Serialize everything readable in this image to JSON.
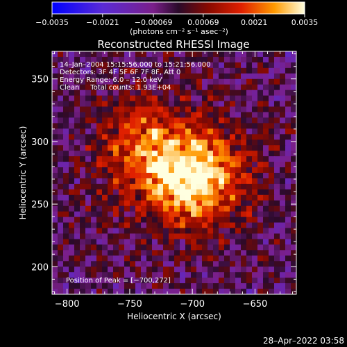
{
  "chart_data": {
    "type": "heatmap",
    "title": "Reconstructed RHESSI Image",
    "xlabel": "Heliocentric X (arcsec)",
    "ylabel": "Heliocentric Y (arcsec)",
    "xlim": [
      -812,
      -617
    ],
    "ylim": [
      178,
      372
    ],
    "x_ticks": [
      {
        "value": -800,
        "label": "−800"
      },
      {
        "value": -750,
        "label": "−750"
      },
      {
        "value": -700,
        "label": "−700"
      },
      {
        "value": -650,
        "label": "−650"
      }
    ],
    "y_ticks": [
      {
        "value": 200,
        "label": "200"
      },
      {
        "value": 250,
        "label": "250"
      },
      {
        "value": 300,
        "label": "300"
      },
      {
        "value": 350,
        "label": "350"
      }
    ],
    "colorbar": {
      "range": [
        -0.0035,
        0.0035
      ],
      "ticks": [
        {
          "value": -0.0035,
          "label": "−0.0035"
        },
        {
          "value": -0.0021,
          "label": "−0.0021"
        },
        {
          "value": -0.00069,
          "label": "−0.00069"
        },
        {
          "value": 0.00069,
          "label": "0.00069"
        },
        {
          "value": 0.0021,
          "label": "0.0021"
        },
        {
          "value": 0.0035,
          "label": "0.0035"
        }
      ],
      "label": "(photons cm⁻² s⁻¹ asec⁻²)"
    },
    "annotations": [
      "14–Jan–2004 15:15:56.000 to 15:21:56.000",
      "Detectors: 3F 4F 5F 6F 7F 8F, Att 0",
      "Energy Range: 6.0 – 12.0 keV",
      "Clean     Total counts: 1.93E+04"
    ],
    "peak_label": "Position of Peak = [−700,272]",
    "peak": [
      -700,
      272
    ],
    "grid": false
  },
  "footer": {
    "timestamp": "28–Apr–2022 03:58"
  }
}
